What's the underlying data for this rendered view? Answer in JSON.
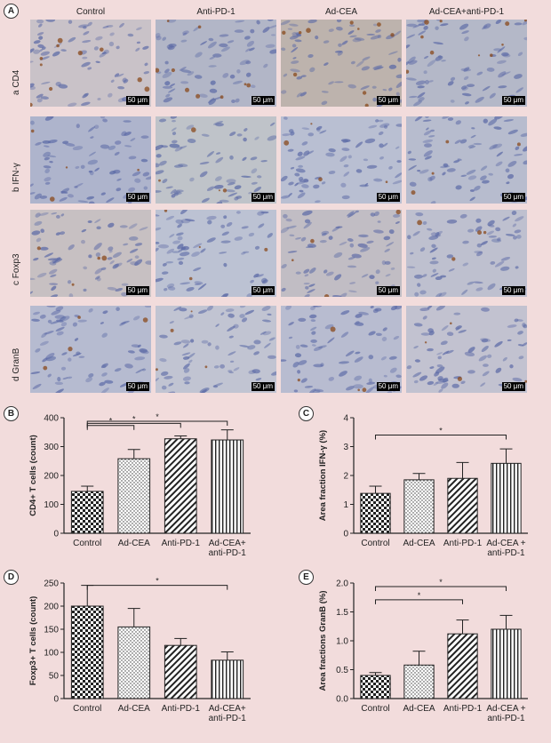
{
  "panel_a": {
    "letter": "A",
    "columns": [
      "Control",
      "Anti-PD-1",
      "Ad-CEA",
      "Ad-CEA+anti-PD-1"
    ],
    "rows": [
      "a CD4",
      "b IFN-γ",
      "c Foxp3",
      "d GranB"
    ],
    "scale_bar": "50 μm"
  },
  "chart_data": [
    {
      "panel": "B",
      "type": "bar",
      "categories": [
        "Control",
        "Ad-CEA",
        "Anti-PD-1",
        "Ad-CEA+\nanti-PD-1"
      ],
      "values": [
        145,
        258,
        327,
        323
      ],
      "errors": [
        18,
        32,
        10,
        35
      ],
      "ylabel": "CD4+ T cells (count)",
      "ylim": [
        0,
        400
      ],
      "yticks": [
        0,
        100,
        200,
        300,
        400
      ],
      "patterns": [
        "checker",
        "dots",
        "diag",
        "vert"
      ],
      "significance": [
        {
          "from": 0,
          "to": 1,
          "label": "*"
        },
        {
          "from": 0,
          "to": 2,
          "label": "*"
        },
        {
          "from": 0,
          "to": 3,
          "label": "*"
        }
      ]
    },
    {
      "panel": "C",
      "type": "bar",
      "categories": [
        "Control",
        "Ad-CEA",
        "Anti-PD-1",
        "Ad-CEA +\nanti-PD-1"
      ],
      "values": [
        1.38,
        1.85,
        1.9,
        2.42
      ],
      "errors": [
        0.25,
        0.22,
        0.55,
        0.5
      ],
      "ylabel": "Area fraction IFN-γ (%)",
      "ylim": [
        0,
        4
      ],
      "yticks": [
        0,
        1,
        2,
        3,
        4
      ],
      "patterns": [
        "checker",
        "dots",
        "diag",
        "vert"
      ],
      "significance": [
        {
          "from": 0,
          "to": 3,
          "label": "*"
        }
      ]
    },
    {
      "panel": "D",
      "type": "bar",
      "categories": [
        "Control",
        "Ad-CEA",
        "Anti-PD-1",
        "Ad-CEA+\nanti-PD-1"
      ],
      "values": [
        200,
        155,
        115,
        83
      ],
      "errors": [
        45,
        40,
        15,
        18
      ],
      "ylabel": "Foxp3+ T cells (count)",
      "ylim": [
        0,
        250
      ],
      "yticks": [
        0,
        50,
        100,
        150,
        200,
        250
      ],
      "patterns": [
        "checker",
        "dots",
        "diag",
        "vert"
      ],
      "significance": [
        {
          "from": 0,
          "to": 3,
          "label": "*"
        }
      ]
    },
    {
      "panel": "E",
      "type": "bar",
      "categories": [
        "Control",
        "Ad-CEA",
        "Anti-PD-1",
        "Ad-CEA +\nanti-PD-1"
      ],
      "values": [
        0.4,
        0.58,
        1.12,
        1.2
      ],
      "errors": [
        0.05,
        0.24,
        0.24,
        0.24
      ],
      "ylabel": "Area fractions GranB (%)",
      "ylim": [
        0,
        2.0
      ],
      "yticks": [
        0.0,
        0.5,
        1.0,
        1.5,
        2.0
      ],
      "patterns": [
        "checker",
        "dots",
        "diag",
        "vert"
      ],
      "significance": [
        {
          "from": 0,
          "to": 2,
          "label": "*"
        },
        {
          "from": 0,
          "to": 3,
          "label": "*"
        }
      ]
    }
  ]
}
